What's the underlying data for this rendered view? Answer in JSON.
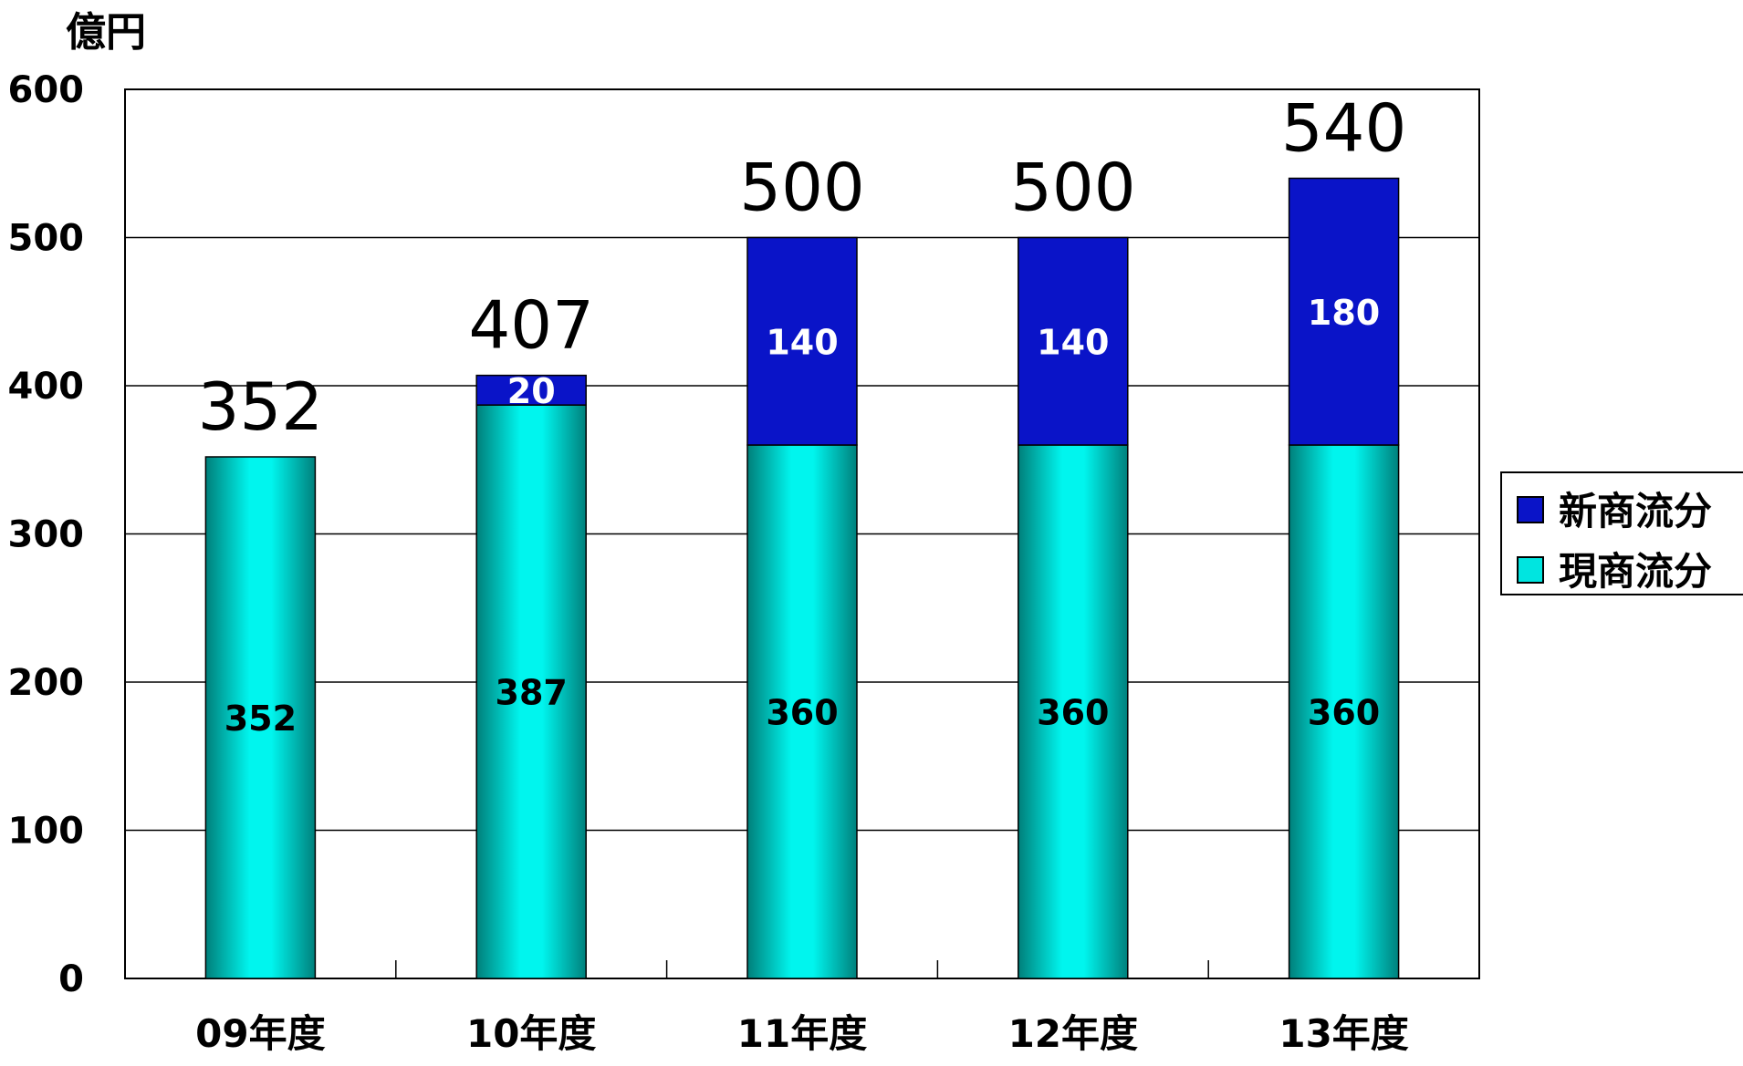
{
  "chart_data": {
    "type": "bar",
    "stacked": true,
    "unit_label": "億円",
    "categories": [
      "09年度",
      "10年度",
      "11年度",
      "12年度",
      "13年度"
    ],
    "series": [
      {
        "name": "現商流分",
        "values": [
          352,
          387,
          360,
          360,
          360
        ],
        "labels": [
          "352",
          "387",
          "360",
          "360",
          "360"
        ],
        "color": "#00E5E0"
      },
      {
        "name": "新商流分",
        "values": [
          0,
          20,
          140,
          140,
          180
        ],
        "labels": [
          "",
          "20",
          "140",
          "140",
          "180"
        ],
        "color": "#0A14C8"
      }
    ],
    "totals": [
      352,
      407,
      500,
      500,
      540
    ],
    "total_labels": [
      "352",
      "407",
      "500",
      "500",
      "540"
    ],
    "ylim": [
      0,
      600
    ],
    "yticks": [
      0,
      100,
      200,
      300,
      400,
      500,
      600
    ],
    "ytick_labels": [
      "0",
      "100",
      "200",
      "300",
      "400",
      "500",
      "600"
    ],
    "grid": true,
    "legend": {
      "position": "right",
      "items": [
        {
          "label": "新商流分",
          "color": "#0A14C8"
        },
        {
          "label": "現商流分",
          "color": "#00E5E0"
        }
      ]
    }
  }
}
